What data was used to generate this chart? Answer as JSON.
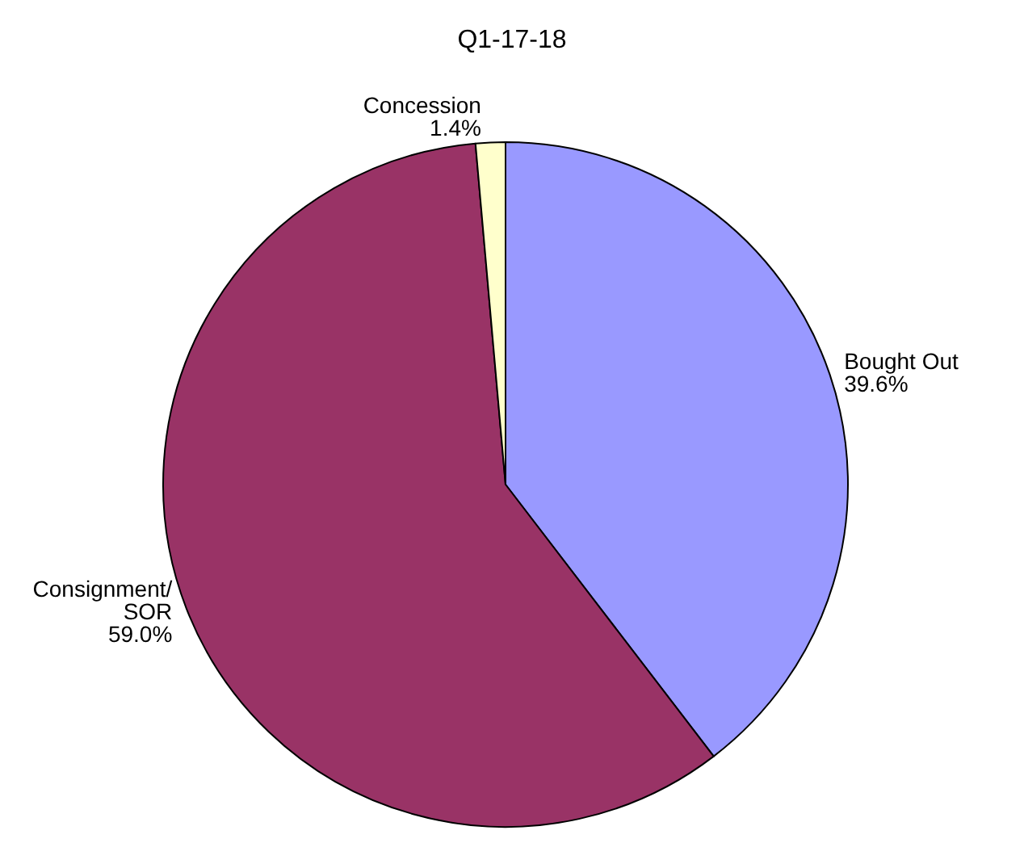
{
  "chart_data": {
    "type": "pie",
    "title": "Q1-17-18",
    "categories": [
      "Bought Out",
      "Consignment/SOR",
      "Concession"
    ],
    "values": [
      39.6,
      59.0,
      1.4
    ],
    "colors": [
      "#9999ff",
      "#993366",
      "#ffffcc"
    ],
    "value_labels": [
      "39.6%",
      "59.0%",
      "1.4%"
    ],
    "legend": false
  }
}
